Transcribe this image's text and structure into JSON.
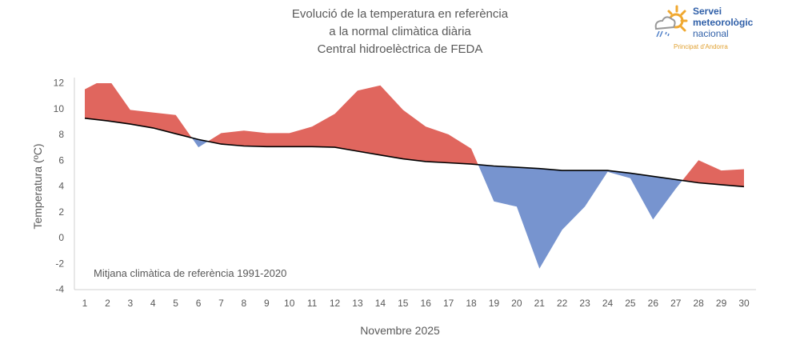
{
  "title_lines": [
    "Evolució de la temperatura en referència",
    "a la normal climàtica diària",
    "Central hidroelèctrica de FEDA"
  ],
  "logo": {
    "line1": "Servei",
    "line2": "meteorològic",
    "line3": "nacional",
    "sub": "Principat d'Andorra"
  },
  "chart_data": {
    "type": "area",
    "title": "Evolució de la temperatura en referència a la normal climàtica diària — Central hidroelèctrica de FEDA",
    "xlabel": "Novembre 2025",
    "ylabel": "Temperatura (ºC)",
    "ylim": [
      -4,
      12
    ],
    "yticks": [
      -4,
      -2,
      0,
      2,
      4,
      6,
      8,
      10,
      12
    ],
    "x": [
      1,
      2,
      3,
      4,
      5,
      6,
      7,
      8,
      9,
      10,
      11,
      12,
      13,
      14,
      15,
      16,
      17,
      18,
      19,
      20,
      21,
      22,
      23,
      24,
      25,
      26,
      27,
      28,
      29,
      30
    ],
    "series": [
      {
        "role": "temperature",
        "values": [
          11.5,
          12.4,
          9.9,
          9.7,
          9.5,
          7.0,
          8.1,
          8.3,
          8.1,
          8.1,
          8.6,
          9.6,
          11.4,
          11.8,
          9.9,
          8.6,
          8.0,
          6.9,
          2.8,
          2.4,
          -2.4,
          0.6,
          2.4,
          5.1,
          4.6,
          1.4,
          3.8,
          6.0,
          5.2,
          5.3
        ]
      },
      {
        "role": "normal",
        "values": [
          9.25,
          9.05,
          8.8,
          8.5,
          8.05,
          7.6,
          7.25,
          7.1,
          7.05,
          7.05,
          7.05,
          7.0,
          6.7,
          6.4,
          6.1,
          5.9,
          5.8,
          5.7,
          5.55,
          5.45,
          5.35,
          5.2,
          5.2,
          5.2,
          5.0,
          4.75,
          4.5,
          4.25,
          4.1,
          3.95
        ]
      }
    ],
    "annotation": "Mitjana climàtica de referència 1991-2020",
    "colors": {
      "above": "#e0665e",
      "below": "#7794cf",
      "normal_line": "#000000"
    },
    "grid": false
  }
}
